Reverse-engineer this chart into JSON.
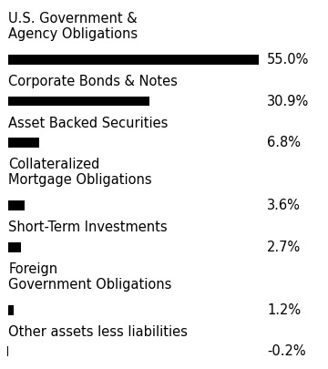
{
  "categories": [
    "U.S. Government &\nAgency Obligations",
    "Corporate Bonds & Notes",
    "Asset Backed Securities",
    "Collateralized\nMortgage Obligations",
    "Short-Term Investments",
    "Foreign\nGovernment Obligations",
    "Other assets less liabilities"
  ],
  "values": [
    55.0,
    30.9,
    6.8,
    3.6,
    2.7,
    1.2,
    -0.2
  ],
  "labels": [
    "55.0%",
    "30.9%",
    "6.8%",
    "3.6%",
    "2.7%",
    "1.2%",
    "-0.2%"
  ],
  "bar_color": "#000000",
  "background_color": "#ffffff",
  "text_color": "#000000",
  "label_fontsize": 10.5,
  "value_fontsize": 10.5,
  "max_val": 55.0
}
